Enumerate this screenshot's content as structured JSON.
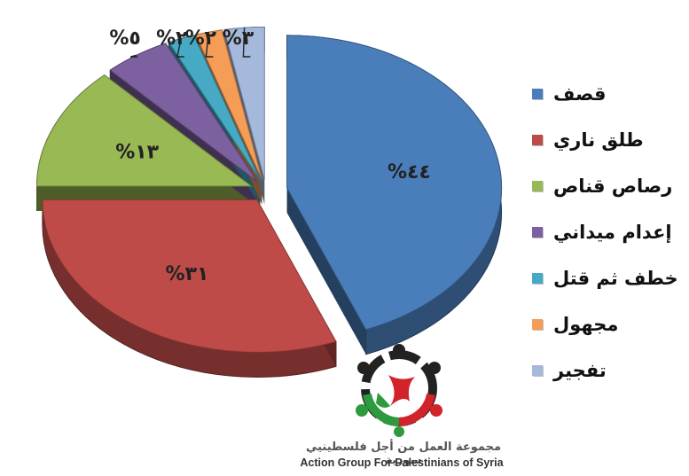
{
  "chart_data": {
    "type": "pie",
    "title": "",
    "categories": [
      "قصف",
      "طلق ناري",
      "رصاص قناص",
      "إعدام ميداني",
      "خطف ثم قتل",
      "مجهول",
      "تفجير"
    ],
    "values": [
      44,
      31,
      13,
      5,
      2,
      2,
      3
    ],
    "data_labels": [
      "%٤٤",
      "%٣١",
      "%١٣",
      "%٥",
      "%٢",
      "%٢",
      "%٣"
    ],
    "colors": [
      "#4a7ebb",
      "#be4b48",
      "#98b954",
      "#7d60a0",
      "#46aac5",
      "#f59d56",
      "#a5b9dc"
    ],
    "legend_position": "right"
  },
  "legend": {
    "items": [
      {
        "label": "قصف",
        "color": "#4a7ebb"
      },
      {
        "label": "طلق ناري",
        "color": "#be4b48"
      },
      {
        "label": "رصاص قناص",
        "color": "#98b954"
      },
      {
        "label": "إعدام ميداني",
        "color": "#7d60a0"
      },
      {
        "label": "خطف ثم قتل",
        "color": "#46aac5"
      },
      {
        "label": "مجهول",
        "color": "#f59d56"
      },
      {
        "label": "تفجير",
        "color": "#a5b9dc"
      }
    ]
  },
  "organization": {
    "name_ar": "مجموعة العمل من أجل فلسطينيي سورية",
    "name_en": "Action Group For Palestinians of Syria"
  }
}
